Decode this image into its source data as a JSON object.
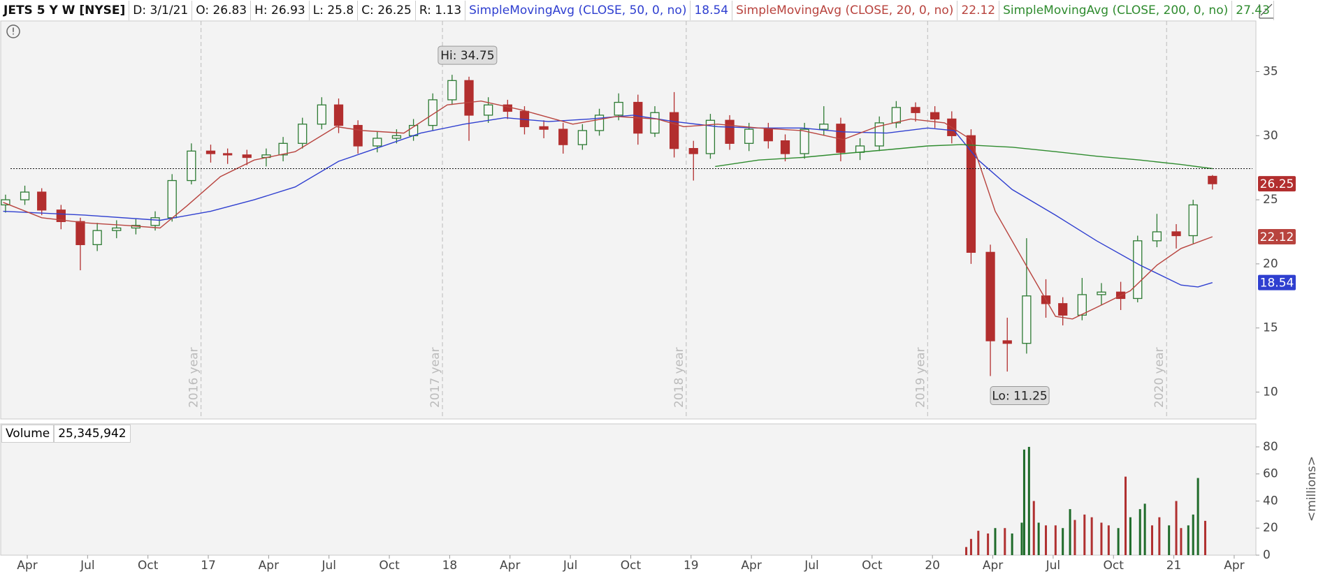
{
  "header": {
    "symbol": "JETS 5 Y W [NYSE]",
    "fields": [
      "D: 3/1/21",
      "O: 26.83",
      "H: 26.93",
      "L: 25.8",
      "C: 26.25",
      "R: 1.13"
    ]
  },
  "chart_data": [
    {
      "type": "candlestick",
      "x": [
        2016.16,
        2016.24,
        2016.31,
        2016.39,
        2016.47,
        2016.54,
        2016.62,
        2016.7,
        2016.78,
        2016.85,
        2016.93,
        2017.01,
        2017.08,
        2017.16,
        2017.24,
        2017.31,
        2017.39,
        2017.47,
        2017.54,
        2017.62,
        2017.7,
        2017.78,
        2017.85,
        2017.93,
        2018.01,
        2018.08,
        2018.16,
        2018.24,
        2018.31,
        2018.39,
        2018.47,
        2018.55,
        2018.62,
        2018.7,
        2018.78,
        2018.85,
        2018.93,
        2019.01,
        2019.08,
        2019.16,
        2019.24,
        2019.32,
        2019.39,
        2019.47,
        2019.55,
        2019.62,
        2019.7,
        2019.78,
        2019.85,
        2019.93,
        2020.01,
        2020.08,
        2020.16,
        2020.24,
        2020.31,
        2020.39,
        2020.47,
        2020.54,
        2020.62,
        2020.7,
        2020.78,
        2020.85,
        2020.93,
        2021.01,
        2021.08,
        2021.16
      ],
      "open": [
        24.6,
        25.0,
        25.6,
        24.2,
        23.3,
        21.5,
        22.6,
        22.8,
        23.0,
        23.6,
        26.5,
        28.8,
        28.6,
        28.5,
        28.3,
        28.5,
        29.4,
        30.9,
        32.4,
        30.8,
        29.2,
        29.8,
        30.0,
        30.8,
        32.8,
        34.3,
        31.6,
        32.4,
        31.9,
        30.7,
        30.5,
        29.3,
        30.4,
        31.6,
        32.6,
        30.2,
        31.8,
        29.0,
        28.6,
        31.2,
        29.4,
        30.5,
        29.6,
        28.6,
        30.5,
        30.9,
        28.7,
        29.2,
        31.0,
        32.2,
        31.8,
        31.3,
        30.0,
        20.9,
        14.0,
        13.8,
        17.5,
        16.9,
        16.0,
        17.6,
        17.8,
        17.3,
        21.8,
        22.5,
        22.2,
        26.83
      ],
      "high": [
        25.4,
        26.1,
        25.9,
        24.6,
        23.6,
        23.2,
        23.4,
        23.5,
        24.1,
        27.0,
        29.4,
        29.3,
        29.0,
        28.9,
        29.0,
        29.9,
        31.4,
        33.0,
        32.9,
        31.2,
        30.3,
        30.5,
        31.3,
        33.3,
        34.75,
        34.6,
        33.0,
        32.8,
        32.3,
        31.2,
        31.0,
        30.9,
        32.1,
        33.3,
        33.2,
        32.3,
        33.4,
        29.6,
        31.7,
        31.6,
        31.0,
        31.0,
        30.1,
        31.0,
        32.3,
        31.4,
        29.8,
        31.5,
        32.7,
        32.6,
        32.3,
        31.9,
        30.5,
        21.5,
        15.8,
        22.0,
        18.8,
        17.4,
        18.9,
        18.5,
        18.6,
        22.2,
        23.9,
        23.1,
        25.0,
        26.93
      ],
      "low": [
        24.0,
        24.6,
        23.8,
        22.7,
        19.5,
        21.0,
        22.0,
        22.3,
        22.6,
        23.3,
        26.2,
        27.9,
        27.8,
        27.7,
        27.6,
        28.0,
        29.0,
        30.5,
        30.2,
        28.6,
        28.7,
        29.4,
        29.6,
        30.4,
        32.4,
        29.6,
        31.0,
        31.3,
        30.1,
        29.8,
        28.6,
        28.9,
        30.0,
        31.2,
        29.3,
        29.9,
        28.3,
        26.5,
        28.2,
        28.9,
        28.8,
        29.0,
        28.0,
        28.2,
        30.0,
        28.0,
        28.1,
        28.8,
        30.6,
        31.1,
        30.6,
        29.4,
        20.0,
        11.25,
        11.6,
        13.0,
        15.8,
        15.2,
        15.6,
        16.8,
        16.4,
        17.0,
        21.3,
        21.2,
        21.6,
        25.8
      ],
      "close": [
        25.0,
        25.6,
        24.2,
        23.3,
        21.5,
        22.6,
        22.8,
        23.0,
        23.6,
        26.5,
        28.8,
        28.6,
        28.5,
        28.3,
        28.5,
        29.4,
        30.9,
        32.4,
        30.8,
        29.2,
        29.8,
        30.0,
        30.8,
        32.8,
        34.3,
        31.6,
        32.4,
        31.9,
        30.7,
        30.5,
        29.3,
        30.4,
        31.6,
        32.6,
        30.2,
        31.8,
        29.0,
        28.6,
        31.2,
        29.4,
        30.5,
        29.6,
        28.6,
        30.5,
        30.9,
        28.7,
        29.2,
        31.0,
        32.2,
        31.8,
        31.3,
        30.0,
        20.9,
        14.0,
        13.8,
        17.5,
        16.9,
        16.0,
        17.6,
        17.8,
        17.3,
        21.8,
        22.5,
        22.2,
        24.6,
        26.25
      ],
      "up_color": "#2d7a33",
      "down_color": "#b22e2e",
      "xlim": [
        2016.14,
        2021.34
      ],
      "ylim": [
        7.9,
        38.95
      ],
      "yticks": [
        10,
        15,
        20,
        25,
        30,
        35
      ],
      "studies": [
        {
          "name": "SimpleMovingAvg (CLOSE, 50, 0, no)",
          "color": "#2f3fd0",
          "value": 18.54,
          "x": [
            2016.15,
            2016.49,
            2016.8,
            2017.01,
            2017.19,
            2017.36,
            2017.54,
            2017.71,
            2017.88,
            2018.06,
            2018.23,
            2018.41,
            2018.58,
            2018.76,
            2018.93,
            2019.11,
            2019.28,
            2019.46,
            2019.63,
            2019.81,
            2019.98,
            2020.09,
            2020.19,
            2020.33,
            2020.51,
            2020.68,
            2020.86,
            2021.03,
            2021.1,
            2021.16
          ],
          "values": [
            24.1,
            23.8,
            23.4,
            24.1,
            25.0,
            26.0,
            28.0,
            29.1,
            30.2,
            30.9,
            31.4,
            31.1,
            31.3,
            31.6,
            31.1,
            30.7,
            30.6,
            30.6,
            30.3,
            30.2,
            30.6,
            30.4,
            28.1,
            25.8,
            23.8,
            21.8,
            19.9,
            18.35,
            18.2,
            18.54
          ]
        },
        {
          "name": "SimpleMovingAvg (CLOSE, 20, 0, no)",
          "color": "#b8433e",
          "value": 22.12,
          "x": [
            2016.15,
            2016.31,
            2016.49,
            2016.66,
            2016.8,
            2016.91,
            2017.05,
            2017.19,
            2017.36,
            2017.53,
            2017.64,
            2017.81,
            2017.99,
            2018.13,
            2018.3,
            2018.51,
            2018.69,
            2018.86,
            2018.97,
            2019.11,
            2019.28,
            2019.46,
            2019.63,
            2019.77,
            2019.91,
            2020.05,
            2020.16,
            2020.26,
            2020.4,
            2020.51,
            2020.58,
            2020.68,
            2020.82,
            2020.93,
            2021.03,
            2021.16
          ],
          "values": [
            24.8,
            23.6,
            23.2,
            23.0,
            22.8,
            24.5,
            26.8,
            28.1,
            28.75,
            30.7,
            30.4,
            30.2,
            32.4,
            32.7,
            32.0,
            30.9,
            31.5,
            31.3,
            30.7,
            30.9,
            30.6,
            30.4,
            29.7,
            30.7,
            31.3,
            31.0,
            29.7,
            24.1,
            19.5,
            15.9,
            15.7,
            16.6,
            17.9,
            19.9,
            21.2,
            22.12
          ]
        },
        {
          "name": "SimpleMovingAvg (CLOSE, 200, 0, no)",
          "color": "#2e8b2e",
          "value": 27.43,
          "x": [
            2019.1,
            2019.28,
            2019.46,
            2019.63,
            2019.81,
            2019.98,
            2020.12,
            2020.33,
            2020.51,
            2020.68,
            2020.86,
            2021.03,
            2021.16
          ],
          "values": [
            27.6,
            28.1,
            28.3,
            28.6,
            28.9,
            29.2,
            29.3,
            29.1,
            28.75,
            28.4,
            28.1,
            27.75,
            27.43
          ]
        }
      ],
      "annotations": [
        "Hi: 34.75",
        "Lo: 11.25"
      ],
      "year_lines": [
        {
          "value": 2016.97,
          "label": "2016 year"
        },
        {
          "value": 2017.97,
          "label": "2017 year"
        },
        {
          "value": 2018.98,
          "label": "2018 year"
        },
        {
          "value": 2019.98,
          "label": "2019 year"
        },
        {
          "value": 2020.97,
          "label": "2020 year"
        }
      ]
    },
    {
      "type": "bar",
      "title": "Volume",
      "current": "25,345,942",
      "ylabel": "<millions>",
      "x": [
        2020.14,
        2020.16,
        2020.19,
        2020.23,
        2020.26,
        2020.3,
        2020.33,
        2020.37,
        2020.38,
        2020.4,
        2020.42,
        2020.44,
        2020.47,
        2020.51,
        2020.54,
        2020.57,
        2020.59,
        2020.63,
        2020.66,
        2020.7,
        2020.73,
        2020.77,
        2020.8,
        2020.82,
        2020.86,
        2020.88,
        2020.91,
        2020.94,
        2020.98,
        2021.01,
        2021.03,
        2021.06,
        2021.08,
        2021.1,
        2021.13
      ],
      "values": [
        6,
        12,
        18,
        16,
        20,
        20,
        16,
        24,
        78,
        80,
        40,
        24,
        22,
        22,
        20,
        34,
        26,
        30,
        28,
        24,
        22,
        20,
        58,
        28,
        34,
        38,
        22,
        28,
        22,
        40,
        20,
        22,
        30,
        57,
        25.35
      ],
      "colors": [
        "#b03030",
        "#b03030",
        "#b03030",
        "#b03030",
        "#1f6b2a",
        "#b03030",
        "#1f6b2a",
        "#1f6b2a",
        "#1f6b2a",
        "#1f6b2a",
        "#b03030",
        "#1f6b2a",
        "#b03030",
        "#b03030",
        "#1f6b2a",
        "#1f6b2a",
        "#b03030",
        "#b03030",
        "#b03030",
        "#b03030",
        "#b03030",
        "#1f6b2a",
        "#b03030",
        "#1f6b2a",
        "#1f6b2a",
        "#1f6b2a",
        "#b03030",
        "#b03030",
        "#1f6b2a",
        "#b03030",
        "#b03030",
        "#1f6b2a",
        "#1f6b2a",
        "#1f6b2a",
        "#b03030"
      ],
      "xlim": [
        2016.14,
        2021.34
      ],
      "ylim": [
        0,
        97
      ],
      "yticks": [
        0,
        20,
        40,
        60,
        80
      ],
      "xticks": [
        {
          "value": 2016.25,
          "label": "Apr"
        },
        {
          "value": 2016.5,
          "label": "Jul"
        },
        {
          "value": 2016.75,
          "label": "Oct"
        },
        {
          "value": 2017,
          "label": "17"
        },
        {
          "value": 2017.25,
          "label": "Apr"
        },
        {
          "value": 2017.5,
          "label": "Jul"
        },
        {
          "value": 2017.75,
          "label": "Oct"
        },
        {
          "value": 2018,
          "label": "18"
        },
        {
          "value": 2018.25,
          "label": "Apr"
        },
        {
          "value": 2018.5,
          "label": "Jul"
        },
        {
          "value": 2018.75,
          "label": "Oct"
        },
        {
          "value": 2019,
          "label": "19"
        },
        {
          "value": 2019.25,
          "label": "Apr"
        },
        {
          "value": 2019.5,
          "label": "Jul"
        },
        {
          "value": 2019.75,
          "label": "Oct"
        },
        {
          "value": 2020,
          "label": "20"
        },
        {
          "value": 2020.25,
          "label": "Apr"
        },
        {
          "value": 2020.5,
          "label": "Jul"
        },
        {
          "value": 2020.75,
          "label": "Oct"
        },
        {
          "value": 2021,
          "label": "21"
        },
        {
          "value": 2021.25,
          "label": "Apr"
        }
      ]
    }
  ]
}
